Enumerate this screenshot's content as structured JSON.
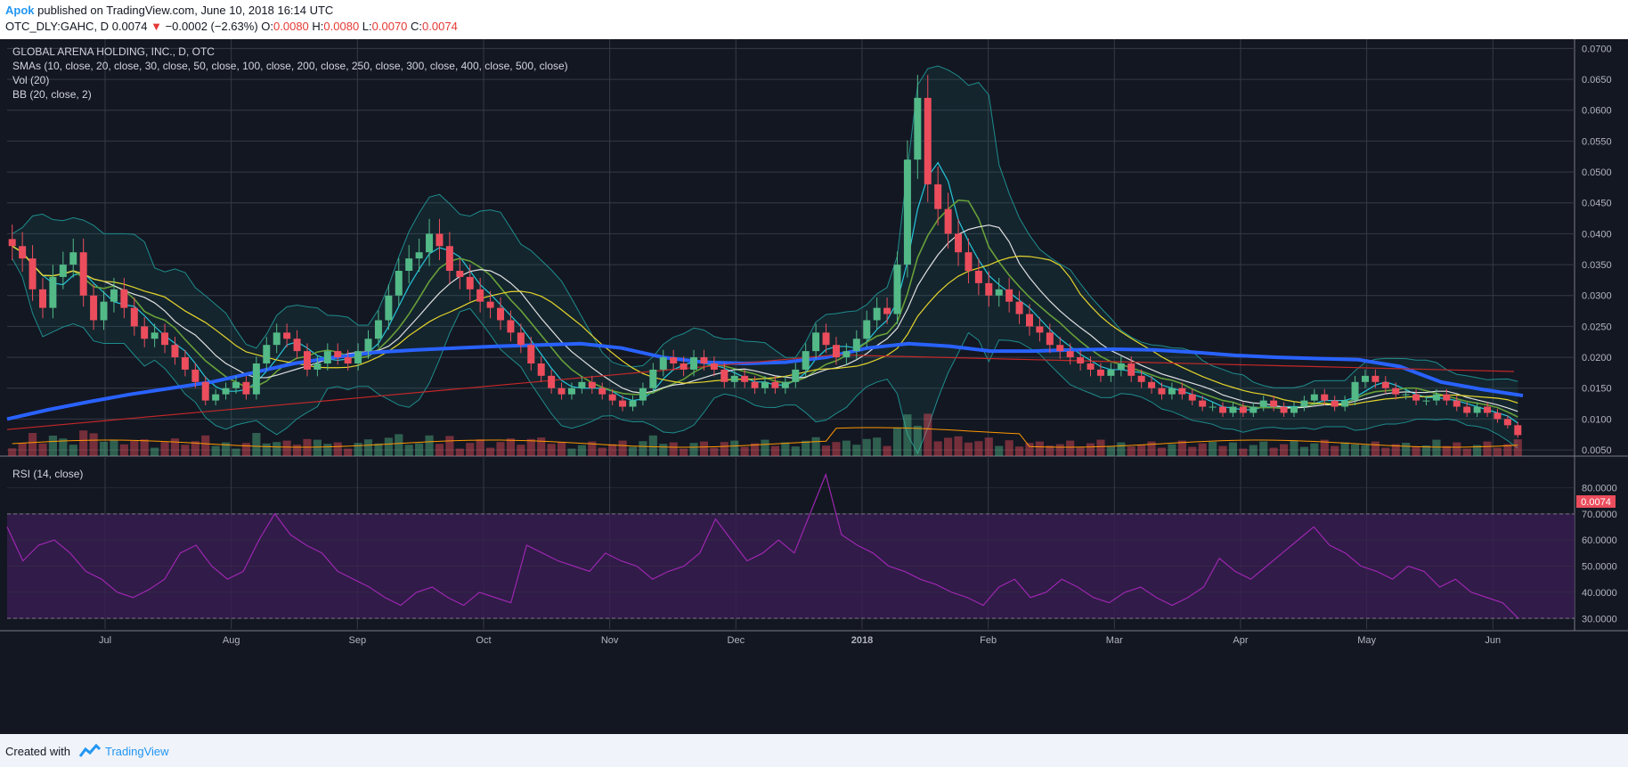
{
  "header": {
    "author": "Apok",
    "published": "published on TradingView.com, June 10, 2018 16:14 UTC",
    "symbol": "OTC_DLY:GAHC, D",
    "last": "0.0074",
    "change": "−0.0002 (−2.63%)",
    "o_label": "O:",
    "o": "0.0080",
    "h_label": "H:",
    "h": "0.0080",
    "l_label": "L:",
    "l": "0.0070",
    "c_label": "C:",
    "c": "0.0074"
  },
  "legend": {
    "title": "GLOBAL ARENA HOLDING, INC., D, OTC",
    "smas": "SMAs (10, close, 20, close, 30, close, 50, close, 100, close, 200, close, 250, close, 300, close, 400, close, 500, close)",
    "vol": "Vol (20)",
    "bb": "BB (20, close, 2)",
    "rsi": "RSI (14, close)"
  },
  "footer": {
    "created": "Created with",
    "brand": "TradingView"
  },
  "colors": {
    "background": "#131722",
    "grid": "#363a45",
    "up": "#53b987",
    "down": "#eb4d5c",
    "rsi": "#9c27b0",
    "rsi_band": "#3a1d52",
    "sma_blue": "#2962ff",
    "sma_red": "#c62828",
    "sma_yellow": "#e6d52c",
    "sma_white": "#e0e0e0",
    "sma_green": "#689f38",
    "sma_cyan": "#26c6da",
    "bb": "#1e8c8c",
    "vol_ma": "#ff9800"
  },
  "chart_data": [
    {
      "type": "candlestick",
      "title": "GLOBAL ARENA HOLDING, INC., D, OTC",
      "x_ticks": [
        "Jul",
        "Aug",
        "Sep",
        "Oct",
        "Nov",
        "Dec",
        "2018",
        "Feb",
        "Mar",
        "Apr",
        "May",
        "Jun"
      ],
      "y_ticks": [
        "0.0700",
        "0.0650",
        "0.0600",
        "0.0550",
        "0.0500",
        "0.0450",
        "0.0400",
        "0.0350",
        "0.0300",
        "0.0250",
        "0.0200",
        "0.0150",
        "0.0100",
        "0.0050"
      ],
      "ylim": [
        0.004,
        0.0715
      ],
      "last_price_label": "0.0074",
      "close": [
        0.038,
        0.036,
        0.031,
        0.028,
        0.033,
        0.035,
        0.037,
        0.03,
        0.026,
        0.029,
        0.031,
        0.028,
        0.025,
        0.023,
        0.024,
        0.022,
        0.02,
        0.018,
        0.016,
        0.013,
        0.014,
        0.015,
        0.016,
        0.014,
        0.019,
        0.022,
        0.024,
        0.023,
        0.021,
        0.018,
        0.019,
        0.021,
        0.02,
        0.019,
        0.021,
        0.023,
        0.026,
        0.03,
        0.034,
        0.036,
        0.037,
        0.04,
        0.038,
        0.034,
        0.033,
        0.031,
        0.029,
        0.028,
        0.026,
        0.024,
        0.022,
        0.019,
        0.017,
        0.015,
        0.014,
        0.015,
        0.016,
        0.015,
        0.014,
        0.013,
        0.012,
        0.013,
        0.015,
        0.018,
        0.02,
        0.019,
        0.018,
        0.02,
        0.019,
        0.018,
        0.016,
        0.017,
        0.016,
        0.015,
        0.016,
        0.015,
        0.016,
        0.018,
        0.021,
        0.024,
        0.022,
        0.02,
        0.021,
        0.023,
        0.026,
        0.028,
        0.027,
        0.035,
        0.052,
        0.062,
        0.048,
        0.044,
        0.04,
        0.037,
        0.034,
        0.032,
        0.03,
        0.031,
        0.029,
        0.027,
        0.025,
        0.024,
        0.022,
        0.021,
        0.02,
        0.019,
        0.018,
        0.017,
        0.018,
        0.019,
        0.017,
        0.016,
        0.015,
        0.014,
        0.015,
        0.014,
        0.013,
        0.012,
        0.012,
        0.011,
        0.012,
        0.011,
        0.012,
        0.013,
        0.012,
        0.011,
        0.012,
        0.013,
        0.014,
        0.013,
        0.012,
        0.013,
        0.016,
        0.017,
        0.016,
        0.015,
        0.014,
        0.014,
        0.013,
        0.013,
        0.014,
        0.013,
        0.012,
        0.011,
        0.012,
        0.011,
        0.01,
        0.009,
        0.0074
      ],
      "sma_series": [
        {
          "values_note": "blue",
          "values": [
            0.01,
            0.0115,
            0.0128,
            0.014,
            0.015,
            0.016,
            0.0175,
            0.019,
            0.02,
            0.0208,
            0.0212,
            0.0215,
            0.0218,
            0.022,
            0.0222,
            0.0215,
            0.02,
            0.0192,
            0.019,
            0.0192,
            0.02,
            0.0215,
            0.0222,
            0.0218,
            0.021,
            0.021,
            0.0212,
            0.0213,
            0.0212,
            0.0208,
            0.0203,
            0.02,
            0.0198,
            0.0196,
            0.0185,
            0.016,
            0.0148,
            0.0138
          ]
        }
      ],
      "volume_ma_color": "#ff9800"
    },
    {
      "type": "line",
      "title": "RSI (14, close)",
      "y_ticks": [
        "80.0000",
        "70.0000",
        "60.0000",
        "50.0000",
        "40.0000",
        "30.0000"
      ],
      "ylim": [
        26,
        90
      ],
      "bands": [
        30,
        70
      ],
      "values": [
        65,
        52,
        58,
        60,
        55,
        48,
        45,
        40,
        38,
        41,
        45,
        55,
        58,
        50,
        45,
        48,
        60,
        70,
        62,
        58,
        55,
        48,
        45,
        42,
        38,
        35,
        40,
        42,
        38,
        35,
        40,
        38,
        36,
        58,
        55,
        52,
        50,
        48,
        55,
        52,
        50,
        45,
        48,
        50,
        55,
        68,
        60,
        52,
        55,
        60,
        55,
        70,
        85,
        62,
        58,
        55,
        50,
        48,
        45,
        43,
        40,
        38,
        35,
        42,
        45,
        38,
        40,
        45,
        42,
        38,
        36,
        40,
        42,
        38,
        35,
        38,
        42,
        53,
        48,
        45,
        50,
        55,
        60,
        65,
        58,
        55,
        50,
        48,
        45,
        50,
        48,
        42,
        45,
        40,
        38,
        36,
        30
      ]
    }
  ]
}
